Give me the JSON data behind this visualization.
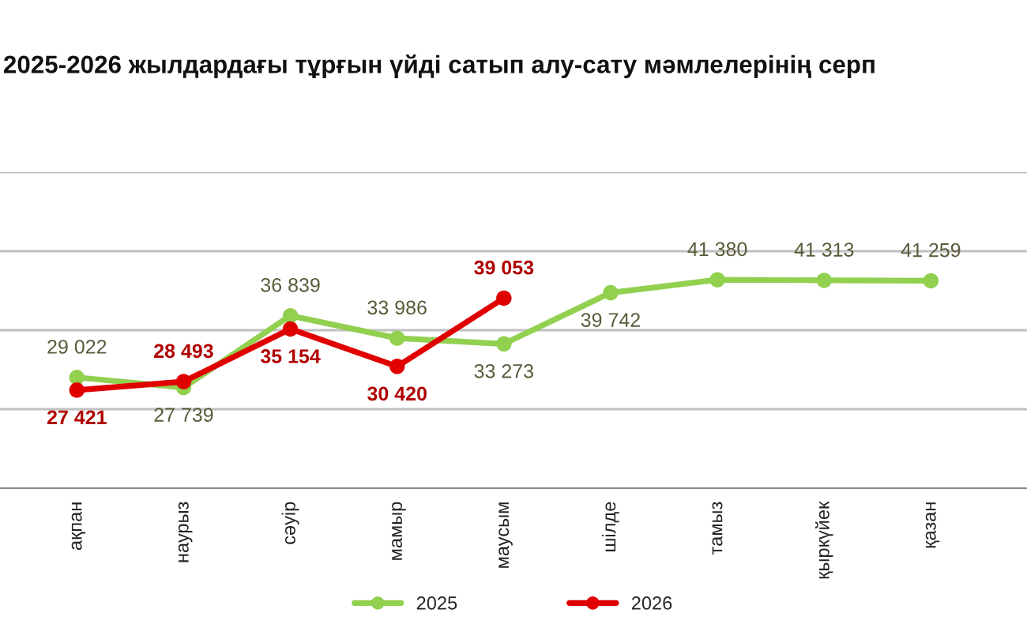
{
  "chart_data": {
    "type": "line",
    "title": "2025-2026 жылдардағы тұрғын үйді сатып алу-сату мәмлелерінің серп",
    "categories": [
      "ақпан",
      "наурыз",
      "сәуір",
      "мамыр",
      "маусым",
      "шілде",
      "тамыз",
      "қыркүйек",
      "қазан"
    ],
    "series": [
      {
        "name": "2025",
        "color": "#92d050",
        "values": [
          29022,
          27739,
          36839,
          33986,
          33273,
          39742,
          41380,
          41313,
          41259
        ],
        "value_labels": [
          "29 022",
          "27 739",
          "36 839",
          "33 986",
          "33 273",
          "39 742",
          "41 380",
          "41 313",
          "41 259"
        ]
      },
      {
        "name": "2026",
        "color": "#e00000",
        "values": [
          27421,
          28493,
          35154,
          30420,
          39053,
          null,
          null,
          null,
          null
        ],
        "value_labels": [
          "27 421",
          "28 493",
          "35 154",
          "30 420",
          "39 053",
          null,
          null,
          null,
          null
        ]
      }
    ],
    "ylim": [
      15000,
      55000
    ],
    "yticks": [
      {
        "value": 25000,
        "label": null
      },
      {
        "value": 35000,
        "label": null
      },
      {
        "value": 45000,
        "label": null
      },
      {
        "value": 55000,
        "label": null
      }
    ],
    "tick_labels": "x",
    "grid": "y",
    "legend": "bottom",
    "marker": "circle",
    "line_style": "solid"
  }
}
